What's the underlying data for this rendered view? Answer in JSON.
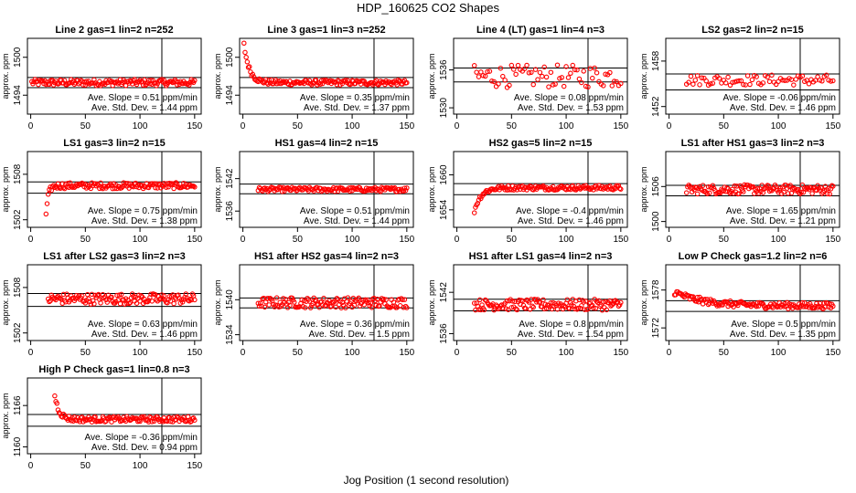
{
  "figure": {
    "title": "HDP_160625  CO2 Shapes",
    "xlabel": "Jog Position (1 second resolution)"
  },
  "chart_data": [
    {
      "type": "scatter",
      "title": "Line 2 gas=1 lin=2 n=252",
      "ylabel": "approx. ppm",
      "xlim": [
        -3,
        156
      ],
      "ylim": [
        1491,
        1503
      ],
      "xticks": [
        0,
        50,
        100,
        150
      ],
      "yticks": [
        1494,
        1500
      ],
      "hlines": [
        1496.8,
        1495.2
      ],
      "vline": 120,
      "slope_text": "Ave. Slope =  0.51  ppm/min",
      "std_text": "Ave. Std. Dev. =  1.44  ppm",
      "series_gen": {
        "start": 1,
        "end": 150,
        "step": 1,
        "base": 1496,
        "noise": 0.5,
        "init": 0
      }
    },
    {
      "type": "scatter",
      "title": "Line 3 gas=1 lin=3 n=252",
      "ylabel": "approx. ppm",
      "xlim": [
        -3,
        156
      ],
      "ylim": [
        1491,
        1503
      ],
      "xticks": [
        0,
        50,
        100,
        150
      ],
      "yticks": [
        1494,
        1500
      ],
      "hlines": [
        1496.8,
        1495.2
      ],
      "vline": 120,
      "slope_text": "Ave. Slope =  0.35  ppm/min",
      "std_text": "Ave. Std. Dev. =  1.37  ppm",
      "series_gen": {
        "start": 1,
        "end": 150,
        "step": 1,
        "base": 1496,
        "noise": 0.4,
        "init": 6,
        "decay": 5
      }
    },
    {
      "type": "scatter",
      "title": "Line 4 (LT) gas=1 lin=4 n=3",
      "ylabel": "approx. ppm",
      "xlim": [
        -3,
        156
      ],
      "ylim": [
        1529,
        1541
      ],
      "xticks": [
        0,
        50,
        100,
        150
      ],
      "yticks": [
        1530,
        1536
      ],
      "hlines": [
        1536.3,
        1534.1
      ],
      "vline": 120,
      "slope_text": "Ave. Slope =  0.08  ppm/min",
      "std_text": "Ave. Std. Dev. =  1.53  ppm",
      "series_gen": {
        "start": 16,
        "end": 150,
        "step": 2,
        "base": 1535,
        "noise": 1.8,
        "init": 0
      }
    },
    {
      "type": "scatter",
      "title": "LS2 gas=2 lin=2 n=15",
      "ylabel": "approx. ppm",
      "xlim": [
        -3,
        156
      ],
      "ylim": [
        1451,
        1461
      ],
      "xticks": [
        0,
        50,
        100,
        150
      ],
      "yticks": [
        1452,
        1458
      ],
      "hlines": [
        1456.3,
        1454.2
      ],
      "vline": 120,
      "slope_text": "Ave. Slope =  -0.06  ppm/min",
      "std_text": "Ave. Std. Dev. =  1.46  ppm",
      "series_gen": {
        "start": 16,
        "end": 150,
        "step": 2,
        "base": 1455.5,
        "noise": 0.7,
        "init": 0
      }
    },
    {
      "type": "scatter",
      "title": "LS1 gas=3 lin=2 n=15",
      "ylabel": "approx. ppm",
      "xlim": [
        -3,
        156
      ],
      "ylim": [
        1501,
        1511
      ],
      "xticks": [
        0,
        50,
        100,
        150
      ],
      "yticks": [
        1502,
        1508
      ],
      "hlines": [
        1507,
        1505.5
      ],
      "vline": 120,
      "slope_text": "Ave. Slope =  0.75  ppm/min",
      "std_text": "Ave. Std. Dev. =  1.38  ppm",
      "series_gen": {
        "start": 14,
        "end": 150,
        "step": 1,
        "base": 1506.5,
        "noise": 0.4,
        "init": -4,
        "decay": 2
      }
    },
    {
      "type": "scatter",
      "title": "HS1 gas=4 lin=2 n=15",
      "ylabel": "approx. ppm",
      "xlim": [
        -3,
        156
      ],
      "ylim": [
        1533,
        1547
      ],
      "xticks": [
        0,
        50,
        100,
        150
      ],
      "yticks": [
        1536,
        1542
      ],
      "hlines": [
        1541,
        1539.2
      ],
      "vline": 120,
      "slope_text": "Ave. Slope =  0.51  ppm/min",
      "std_text": "Ave. Std. Dev. =  1.44  ppm",
      "series_gen": {
        "start": 14,
        "end": 150,
        "step": 1,
        "base": 1540,
        "noise": 0.4,
        "init": 0
      }
    },
    {
      "type": "scatter",
      "title": "HS2 gas=5 lin=2 n=15",
      "ylabel": "approx. ppm",
      "xlim": [
        -3,
        156
      ],
      "ylim": [
        1651,
        1664
      ],
      "xticks": [
        0,
        50,
        100,
        150
      ],
      "yticks": [
        1654,
        1660
      ],
      "hlines": [
        1658.5,
        1656.6
      ],
      "vline": 120,
      "slope_text": "Ave. Slope =  -0.4  ppm/min",
      "std_text": "Ave. Std. Dev. =  1.46  ppm",
      "series_gen": {
        "start": 16,
        "end": 150,
        "step": 1,
        "base": 1657.8,
        "noise": 0.4,
        "init": -4,
        "decay": 6
      }
    },
    {
      "type": "scatter",
      "title": "LS1 after HS1 gas=3 lin=2 n=3",
      "ylabel": "approx. ppm",
      "xlim": [
        -3,
        156
      ],
      "ylim": [
        1499,
        1512
      ],
      "xticks": [
        0,
        50,
        100,
        150
      ],
      "yticks": [
        1500,
        1506
      ],
      "hlines": [
        1506.2,
        1504.4
      ],
      "vline": 120,
      "slope_text": "Ave. Slope =  1.65  ppm/min",
      "std_text": "Ave. Std. Dev. =  1.21  ppm",
      "series_gen": {
        "start": 16,
        "end": 150,
        "step": 1,
        "base": 1505.5,
        "noise": 0.8,
        "init": 0
      }
    },
    {
      "type": "scatter",
      "title": "LS1 after LS2 gas=3 lin=2 n=3",
      "ylabel": "approx. ppm",
      "xlim": [
        -3,
        156
      ],
      "ylim": [
        1501,
        1511
      ],
      "xticks": [
        0,
        50,
        100,
        150
      ],
      "yticks": [
        1502,
        1508
      ],
      "hlines": [
        1507.2,
        1505.5
      ],
      "vline": 120,
      "slope_text": "Ave. Slope =  0.63  ppm/min",
      "std_text": "Ave. Std. Dev. =  1.46  ppm",
      "series_gen": {
        "start": 16,
        "end": 150,
        "step": 1,
        "base": 1506.5,
        "noise": 0.7,
        "init": 0
      }
    },
    {
      "type": "scatter",
      "title": "HS1 after HS2 gas=4 lin=2 n=3",
      "ylabel": "approx. ppm",
      "xlim": [
        -3,
        156
      ],
      "ylim": [
        1533,
        1546
      ],
      "xticks": [
        0,
        50,
        100,
        150
      ],
      "yticks": [
        1534,
        1540
      ],
      "hlines": [
        1540.3,
        1538.6
      ],
      "vline": 120,
      "slope_text": "Ave. Slope =  0.36  ppm/min",
      "std_text": "Ave. Std. Dev. =  1.5  ppm",
      "series_gen": {
        "start": 14,
        "end": 150,
        "step": 1,
        "base": 1539.5,
        "noise": 0.9,
        "init": 0
      }
    },
    {
      "type": "scatter",
      "title": "HS1 after LS1 gas=4 lin=2 n=3",
      "ylabel": "approx. ppm",
      "xlim": [
        -3,
        156
      ],
      "ylim": [
        1535,
        1546
      ],
      "xticks": [
        0,
        50,
        100,
        150
      ],
      "yticks": [
        1536,
        1542
      ],
      "hlines": [
        1541,
        1539.3
      ],
      "vline": 120,
      "slope_text": "Ave. Slope =  0.8  ppm/min",
      "std_text": "Ave. Std. Dev. =  1.54  ppm",
      "series_gen": {
        "start": 16,
        "end": 150,
        "step": 1,
        "base": 1540.2,
        "noise": 0.8,
        "init": 0
      }
    },
    {
      "type": "scatter",
      "title": "Low P Check gas=1.2 lin=2 n=6",
      "ylabel": "approx. ppm",
      "xlim": [
        -3,
        156
      ],
      "ylim": [
        1570,
        1582
      ],
      "xticks": [
        0,
        50,
        100,
        150
      ],
      "yticks": [
        1572,
        1578
      ],
      "hlines": [
        1576.3,
        1574.6
      ],
      "vline": 120,
      "slope_text": "Ave. Slope =  0.5  ppm/min",
      "std_text": "Ave. Std. Dev. =  1.35  ppm",
      "series_gen": {
        "start": 5,
        "end": 150,
        "step": 1,
        "base": 1575.5,
        "noise": 0.5,
        "init": 2.2,
        "decay": 25
      }
    },
    {
      "type": "scatter",
      "title": "High P Check gas=1 lin=0.8 n=3",
      "ylabel": "approx. ppm",
      "xlim": [
        -3,
        156
      ],
      "ylim": [
        1159,
        1170
      ],
      "xticks": [
        0,
        50,
        100,
        150
      ],
      "yticks": [
        1160,
        1166
      ],
      "hlines": [
        1164.7,
        1163
      ],
      "vline": 120,
      "slope_text": "Ave. Slope =  -0.36  ppm/min",
      "std_text": "Ave. Std. Dev. =  0.94  ppm",
      "series_gen": {
        "start": 22,
        "end": 150,
        "step": 1,
        "base": 1164,
        "noise": 0.4,
        "init": 3.5,
        "decay": 4
      }
    }
  ],
  "colors": {
    "point": "#ff0000",
    "axes": "#000000"
  }
}
